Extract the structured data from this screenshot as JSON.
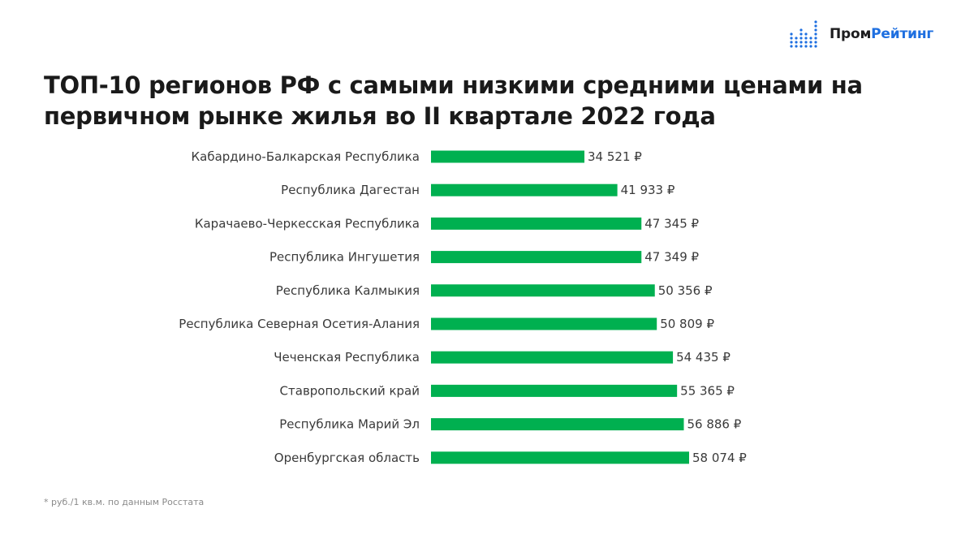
{
  "logo": {
    "part1": "Пром",
    "part2": "Рейтинг",
    "accent_color": "#1e6fe0"
  },
  "title": "ТОП-10 регионов РФ с самыми низкими средними ценами на первичном рынке жилья во II квартале 2022 года",
  "footnote": "* руб./1 кв.м. по данным Росстата",
  "chart_data": {
    "type": "bar",
    "orientation": "horizontal",
    "bar_color": "#00b050",
    "grid": false,
    "categories": [
      "Кабардино-Балкарская Республика",
      "Республика Дагестан",
      "Карачаево-Черкесская Республика",
      "Республика Ингушетия",
      "Республика Калмыкия",
      "Республика Северная Осетия-Алания",
      "Чеченская Республика",
      "Ставропольский край",
      "Республика Марий Эл",
      "Оренбургская область"
    ],
    "values": [
      34521,
      41933,
      47345,
      47349,
      50356,
      50809,
      54435,
      55365,
      56886,
      58074
    ],
    "value_labels": [
      "34 521 ₽",
      "41 933 ₽",
      "47 345 ₽",
      "47 349 ₽",
      "50 356 ₽",
      "50 809 ₽",
      "54 435 ₽",
      "55 365 ₽",
      "56 886 ₽",
      "58 074 ₽"
    ],
    "xlim": [
      0,
      58074
    ]
  }
}
